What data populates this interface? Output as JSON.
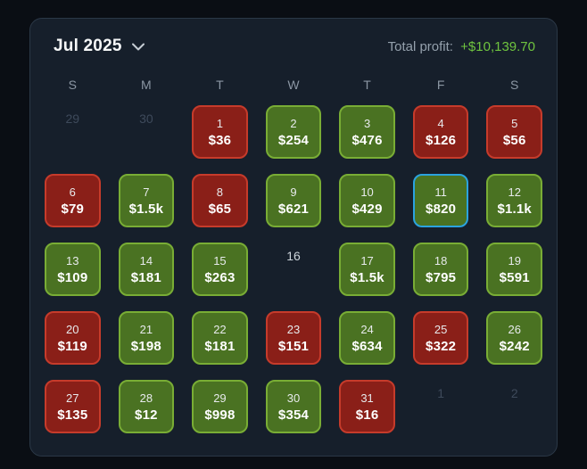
{
  "header": {
    "month_label": "Jul 2025",
    "chevron_icon": "chevron-down",
    "total_profit_label": "Total profit:",
    "total_profit_value": "+$10,139.70"
  },
  "weekdays": [
    "S",
    "M",
    "T",
    "W",
    "T",
    "F",
    "S"
  ],
  "days": [
    {
      "day": "29",
      "type": "adjacent"
    },
    {
      "day": "30",
      "type": "adjacent"
    },
    {
      "day": "1",
      "type": "loss",
      "value": "$36"
    },
    {
      "day": "2",
      "type": "profit",
      "value": "$254"
    },
    {
      "day": "3",
      "type": "profit",
      "value": "$476"
    },
    {
      "day": "4",
      "type": "loss",
      "value": "$126"
    },
    {
      "day": "5",
      "type": "loss",
      "value": "$56"
    },
    {
      "day": "6",
      "type": "loss",
      "value": "$79"
    },
    {
      "day": "7",
      "type": "profit",
      "value": "$1.5k"
    },
    {
      "day": "8",
      "type": "loss",
      "value": "$65"
    },
    {
      "day": "9",
      "type": "profit",
      "value": "$621"
    },
    {
      "day": "10",
      "type": "profit",
      "value": "$429"
    },
    {
      "day": "11",
      "type": "profit",
      "value": "$820",
      "selected": true
    },
    {
      "day": "12",
      "type": "profit",
      "value": "$1.1k"
    },
    {
      "day": "13",
      "type": "profit",
      "value": "$109"
    },
    {
      "day": "14",
      "type": "profit",
      "value": "$181"
    },
    {
      "day": "15",
      "type": "profit",
      "value": "$263"
    },
    {
      "day": "16",
      "type": "none"
    },
    {
      "day": "17",
      "type": "profit",
      "value": "$1.5k"
    },
    {
      "day": "18",
      "type": "profit",
      "value": "$795"
    },
    {
      "day": "19",
      "type": "profit",
      "value": "$591"
    },
    {
      "day": "20",
      "type": "loss",
      "value": "$119"
    },
    {
      "day": "21",
      "type": "profit",
      "value": "$198"
    },
    {
      "day": "22",
      "type": "profit",
      "value": "$181"
    },
    {
      "day": "23",
      "type": "loss",
      "value": "$151"
    },
    {
      "day": "24",
      "type": "profit",
      "value": "$634"
    },
    {
      "day": "25",
      "type": "loss",
      "value": "$322"
    },
    {
      "day": "26",
      "type": "profit",
      "value": "$242"
    },
    {
      "day": "27",
      "type": "loss",
      "value": "$135"
    },
    {
      "day": "28",
      "type": "profit",
      "value": "$12"
    },
    {
      "day": "29",
      "type": "profit",
      "value": "$998"
    },
    {
      "day": "30",
      "type": "profit",
      "value": "$354"
    },
    {
      "day": "31",
      "type": "loss",
      "value": "$16"
    },
    {
      "day": "1",
      "type": "adjacent"
    },
    {
      "day": "2",
      "type": "adjacent"
    }
  ],
  "colors": {
    "profit_fill": "#4a7222",
    "profit_border": "#79ad35",
    "loss_fill": "#8a1f18",
    "loss_border": "#c63b2b",
    "selected_border": "#2ba3df",
    "total_profit_green": "#6fc43f"
  }
}
